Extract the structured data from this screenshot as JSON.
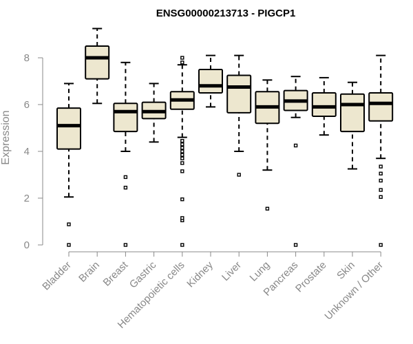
{
  "chart_data": {
    "type": "boxplot",
    "title": "ENSG00000213713 - PIGCP1",
    "xlabel": "",
    "ylabel": "Expression",
    "ylim": [
      0,
      9.2
    ],
    "yticks": [
      0,
      2,
      4,
      6,
      8
    ],
    "grid": false,
    "box_fill": "#ede7cf",
    "box_stroke": "#000000",
    "axis_color": "#888888",
    "categories": [
      "Bladder",
      "Brain",
      "Breast",
      "Gastric",
      "Hematopoietic cells",
      "Kidney",
      "Liver",
      "Lung",
      "Pancreas",
      "Prostate",
      "Skin",
      "Unknown / Other"
    ],
    "boxes": [
      {
        "name": "Bladder",
        "whisker_low": 2.05,
        "q1": 4.1,
        "median": 5.1,
        "q3": 5.85,
        "whisker_high": 6.9,
        "outliers": [
          0.0,
          0.88
        ]
      },
      {
        "name": "Brain",
        "whisker_low": 6.05,
        "q1": 7.1,
        "median": 8.0,
        "q3": 8.5,
        "whisker_high": 9.25,
        "outliers": []
      },
      {
        "name": "Breast",
        "whisker_low": 4.0,
        "q1": 4.85,
        "median": 5.7,
        "q3": 6.05,
        "whisker_high": 7.8,
        "outliers": [
          0.0,
          2.45,
          2.9
        ]
      },
      {
        "name": "Gastric",
        "whisker_low": 4.4,
        "q1": 5.4,
        "median": 5.7,
        "q3": 6.1,
        "whisker_high": 6.9,
        "outliers": []
      },
      {
        "name": "Hematopoietic cells",
        "whisker_low": 4.6,
        "q1": 5.8,
        "median": 6.2,
        "q3": 6.55,
        "whisker_high": 7.7,
        "outliers": [
          0.0,
          1.05,
          1.15,
          1.95,
          3.15,
          3.5,
          3.7,
          3.85,
          4.0,
          4.15,
          4.3,
          4.45,
          7.8,
          8.0
        ]
      },
      {
        "name": "Kidney",
        "whisker_low": 5.9,
        "q1": 6.5,
        "median": 6.8,
        "q3": 7.5,
        "whisker_high": 8.1,
        "outliers": []
      },
      {
        "name": "Liver",
        "whisker_low": 4.0,
        "q1": 5.65,
        "median": 6.75,
        "q3": 7.25,
        "whisker_high": 8.1,
        "outliers": [
          3.0
        ]
      },
      {
        "name": "Lung",
        "whisker_low": 3.2,
        "q1": 5.2,
        "median": 5.9,
        "q3": 6.55,
        "whisker_high": 7.05,
        "outliers": [
          1.55
        ]
      },
      {
        "name": "Pancreas",
        "whisker_low": 5.45,
        "q1": 5.75,
        "median": 6.15,
        "q3": 6.6,
        "whisker_high": 7.2,
        "outliers": [
          0.0,
          4.25
        ]
      },
      {
        "name": "Prostate",
        "whisker_low": 4.7,
        "q1": 5.5,
        "median": 5.9,
        "q3": 6.5,
        "whisker_high": 7.15,
        "outliers": []
      },
      {
        "name": "Skin",
        "whisker_low": 3.25,
        "q1": 4.85,
        "median": 6.0,
        "q3": 6.45,
        "whisker_high": 6.95,
        "outliers": []
      },
      {
        "name": "Unknown / Other",
        "whisker_low": 3.7,
        "q1": 5.3,
        "median": 6.05,
        "q3": 6.5,
        "whisker_high": 8.1,
        "outliers": [
          0.0,
          2.05,
          2.35,
          2.75,
          3.05,
          3.35
        ]
      }
    ]
  }
}
